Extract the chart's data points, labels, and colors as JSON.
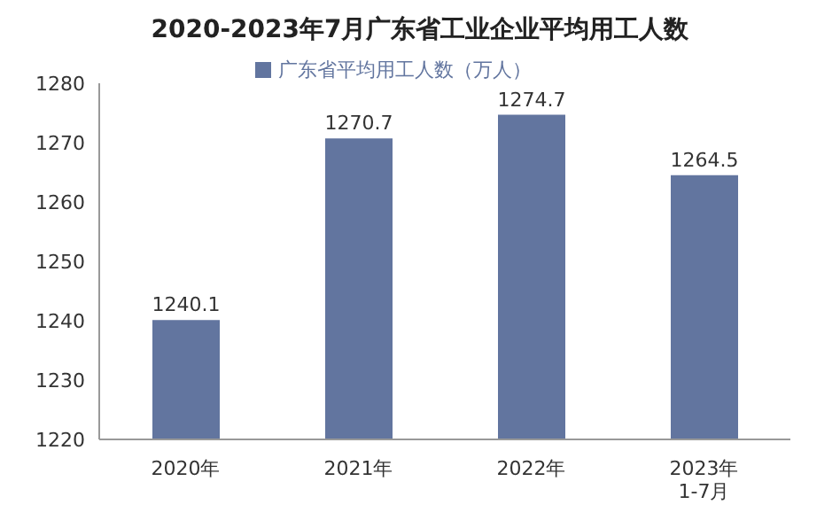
{
  "chart_data": {
    "type": "bar",
    "title": "2020-2023年7月广东省工业企业平均用工人数",
    "categories": [
      "2020年",
      "2021年",
      "2022年",
      "2023年\n1-7月"
    ],
    "series": [
      {
        "name": "广东省平均用工人数（万人）",
        "color": "#62759f",
        "values": [
          1240.1,
          1270.7,
          1274.7,
          1264.5
        ]
      }
    ],
    "ylim": [
      1220,
      1280
    ],
    "yticks": [
      1220,
      1230,
      1240,
      1250,
      1260,
      1270,
      1280
    ],
    "data_labels": true,
    "legend": "top",
    "grid": false
  }
}
